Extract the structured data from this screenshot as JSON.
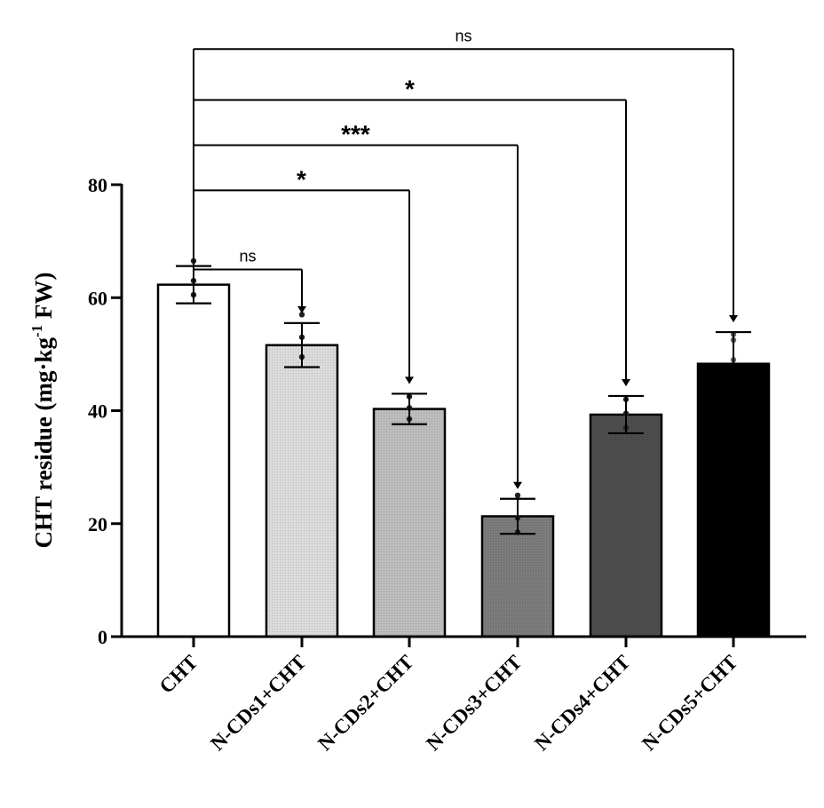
{
  "chart_data": {
    "type": "bar",
    "categories": [
      "CHT",
      "N-CDs1+CHT",
      "N-CDs2+CHT",
      "N-CDs3+CHT",
      "N-CDs4+CHT",
      "N-CDs5+CHT"
    ],
    "values": [
      62.3,
      51.6,
      40.3,
      21.3,
      39.3,
      48.3
    ],
    "errors": [
      3.3,
      3.9,
      2.7,
      3.1,
      3.3,
      5.6
    ],
    "points": [
      [
        66.5,
        63.0,
        60.5
      ],
      [
        57.0,
        53.0,
        49.5
      ],
      [
        42.5,
        40.5,
        38.5
      ],
      [
        25.0,
        21.0,
        18.5
      ],
      [
        42.0,
        39.5,
        37.0
      ],
      [
        53.5,
        52.5,
        49.0
      ]
    ],
    "bar_colors": [
      "#ffffff",
      "#dcdcdc",
      "#bdbdbd",
      "#7c7c7c",
      "#4d4d4d",
      "#000000"
    ],
    "ylabel_main": "CHT residue (mg·kg",
    "ylabel_sup": "-1",
    "ylabel_tail": " FW)",
    "xlabel": "",
    "ylim": [
      0,
      80
    ],
    "yticks": [
      0,
      20,
      40,
      60,
      80
    ],
    "grid": false,
    "legend": "none",
    "comparisons": [
      {
        "from": 0,
        "to": 1,
        "label": "ns",
        "y": 65
      },
      {
        "from": 0,
        "to": 2,
        "label": "*",
        "y": 79
      },
      {
        "from": 0,
        "to": 3,
        "label": "***",
        "y": 87
      },
      {
        "from": 0,
        "to": 4,
        "label": "*",
        "y": 95
      },
      {
        "from": 0,
        "to": 5,
        "label": "ns",
        "y": 104
      }
    ]
  }
}
